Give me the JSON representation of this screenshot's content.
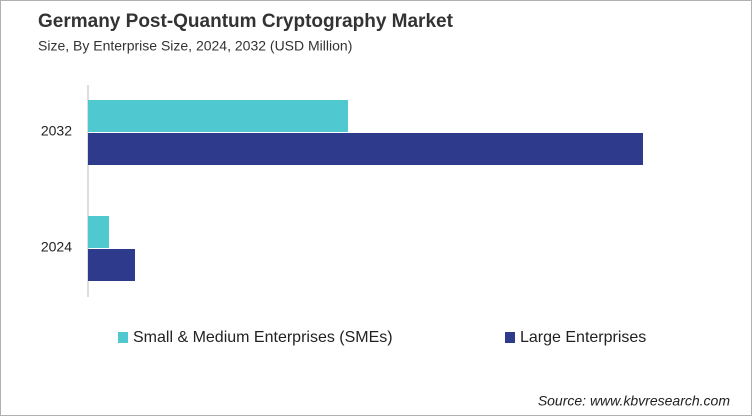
{
  "chart_data": {
    "type": "bar",
    "orientation": "horizontal",
    "title": "Germany Post-Quantum Cryptography Market",
    "subtitle": "Size, By Enterprise Size, 2024, 2032 (USD Million)",
    "categories": [
      "2032",
      "2024"
    ],
    "series": [
      {
        "name": "Small & Medium Enterprises (SMEs)",
        "color": "#4fc8cf",
        "values": [
          26.0,
          2.1
        ]
      },
      {
        "name": "Large Enterprises",
        "color": "#2e3a8c",
        "values": [
          55.5,
          4.7
        ]
      }
    ],
    "source": "Source: www.kbvresearch.com"
  }
}
